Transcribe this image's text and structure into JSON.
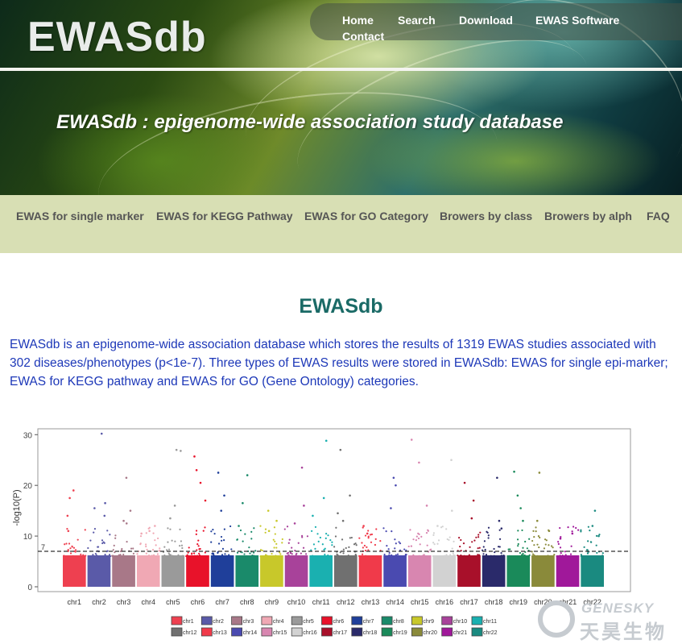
{
  "header": {
    "logo_text": "EWASdb",
    "nav": [
      "Home",
      "Search",
      "Download",
      "EWAS Software",
      "Contact"
    ],
    "tagline": "EWASdb : epigenome-wide association study database"
  },
  "subnav": {
    "items": [
      "EWAS for single marker",
      "EWAS for KEGG Pathway",
      "EWAS for GO Category",
      "Browers by class",
      "Browers by alph",
      "FAQ"
    ]
  },
  "main": {
    "title": "EWASdb",
    "intro_lines": [
      "EWASdb is an epigenome-wide association database which stores the results of 1319 EWAS studies associated with",
      "302 diseases/phenotypes (p<1e-7). Three types of EWAS results were stored in EWASdb: EWAS for single epi-marker;",
      "EWAS for KEGG pathway and EWAS for GO (Gene Ontology) categories."
    ]
  },
  "watermark": {
    "brand_en": "GENESKY",
    "brand_cn": "天昊生物"
  },
  "chart_data": {
    "type": "scatter",
    "title": "",
    "xlabel": "",
    "ylabel": "-log10(P)",
    "ylim": [
      0,
      31
    ],
    "yticks": [
      0,
      10,
      20,
      30
    ],
    "threshold": 7,
    "threshold_label": "7",
    "categories": [
      "chr1",
      "chr2",
      "chr3",
      "chr4",
      "chr5",
      "chr6",
      "chr7",
      "chr8",
      "chr9",
      "chr10",
      "chr11",
      "chr12",
      "chr13",
      "chr14",
      "chr15",
      "chr16",
      "chr17",
      "chr18",
      "chr19",
      "chr20",
      "chr21",
      "chr22"
    ],
    "colors": [
      "#ee4050",
      "#5a5aa8",
      "#a87888",
      "#f0a8b4",
      "#9a9a9a",
      "#e8122a",
      "#1f3f9a",
      "#1a8a6a",
      "#c8c82a",
      "#a8429a",
      "#1ab0b0",
      "#707070",
      "#f03a4a",
      "#4a4ab0",
      "#d886b0",
      "#d2d2d2",
      "#a8102a",
      "#2a2a6a",
      "#1a8a5a",
      "#8a8a3a",
      "#a0189a",
      "#1a8a80"
    ],
    "legend": [
      "chr1",
      "chr2",
      "chr3",
      "chr4",
      "chr5",
      "chr6",
      "chr7",
      "chr8",
      "chr9",
      "chr10",
      "chr11",
      "chr12",
      "chr13",
      "chr14",
      "chr15",
      "chr16",
      "chr17",
      "chr18",
      "chr19",
      "chr20",
      "chr21",
      "chr22"
    ],
    "peaks": [
      [
        11,
        17.5,
        19,
        14
      ],
      [
        30.2,
        16.5,
        15.5,
        14
      ],
      [
        21.5,
        13,
        15,
        12.5
      ],
      [
        12,
        11,
        10.5
      ],
      [
        27,
        26.8,
        16,
        13.5
      ],
      [
        25.7,
        23,
        20.5,
        17
      ],
      [
        22.5,
        18,
        15
      ],
      [
        22,
        16.5,
        12
      ],
      [
        15,
        13,
        11
      ],
      [
        23.5,
        16,
        12.5
      ],
      [
        28.8,
        17.5,
        14
      ],
      [
        27,
        18,
        14.5,
        13
      ],
      [
        12,
        10.5
      ],
      [
        21.5,
        20,
        15.5
      ],
      [
        29,
        24.5,
        16
      ],
      [
        25,
        15,
        12
      ],
      [
        20.5,
        17,
        13.5
      ],
      [
        21.5,
        13,
        11.5
      ],
      [
        22.7,
        18,
        15.5,
        13
      ],
      [
        22.5,
        13,
        11
      ],
      [
        10.5,
        9.5
      ],
      [
        15,
        12,
        10
      ]
    ]
  }
}
